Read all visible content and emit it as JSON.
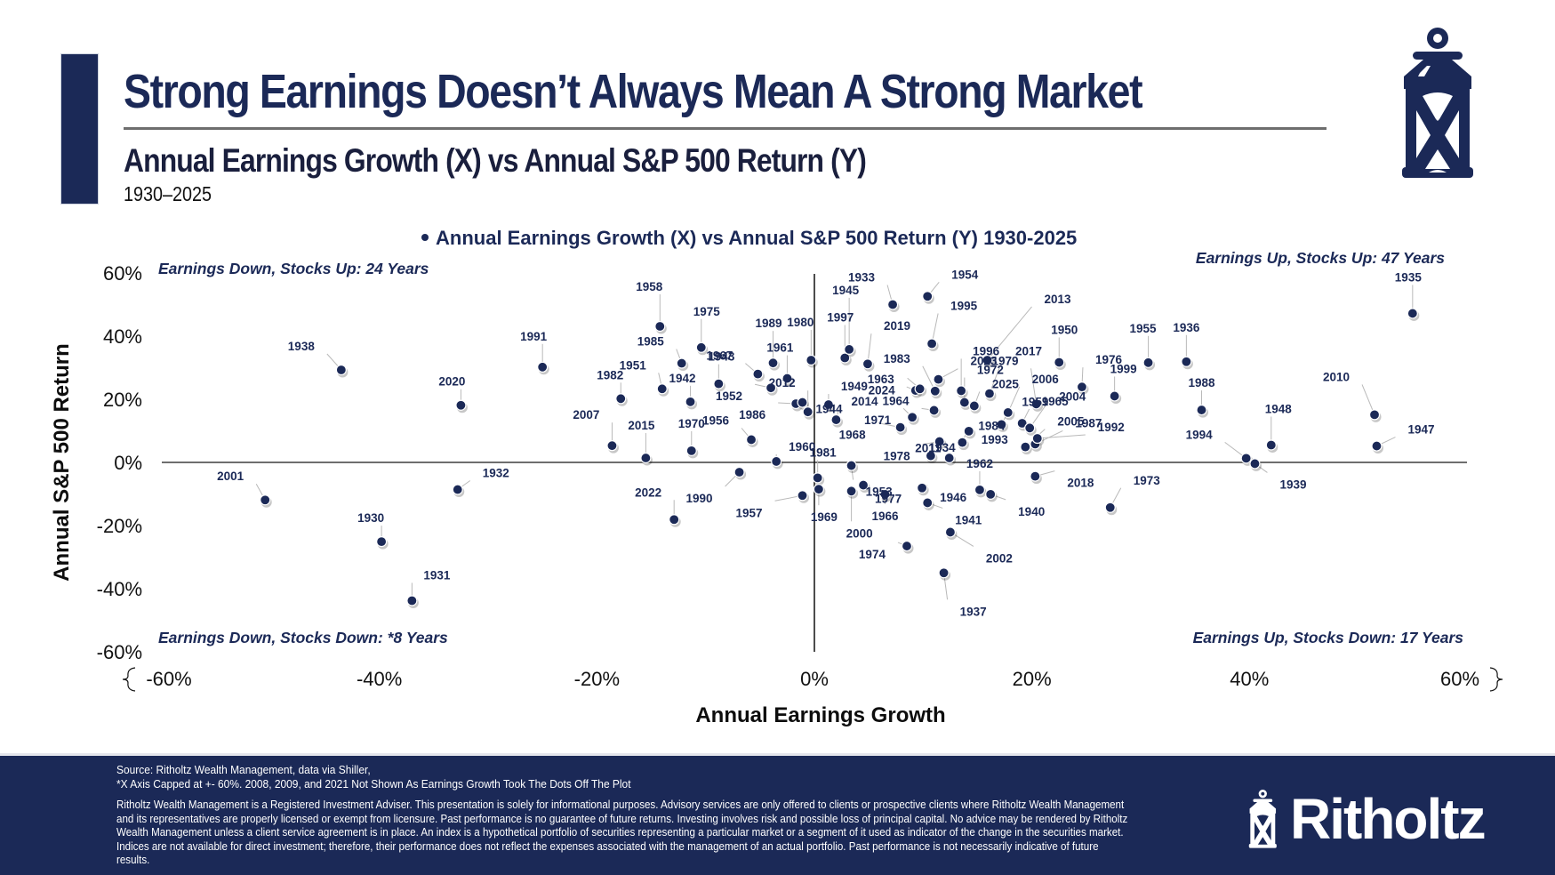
{
  "header": {
    "title": "Strong Earnings Doesn’t Always Mean A Strong Market",
    "subtitle": "Annual Earnings Growth (X) vs Annual S&P 500 Return (Y)",
    "year_range": "1930–2025",
    "logo_icon": "lantern-icon"
  },
  "colors": {
    "navy": "#1b2957",
    "axis": "#6e6e6e",
    "leader": "#b9b9b9"
  },
  "chart_data": {
    "type": "scatter",
    "title": "Annual Earnings Growth (X) vs Annual S&P 500 Return (Y) 1930-2025",
    "legend": "Annual Earnings Growth (X) vs Annual S&P 500 Return (Y) 1930-2025",
    "legend_position": "top-center",
    "xlabel": "Annual Earnings Growth",
    "ylabel": "Annual S&P 500 Return",
    "xlim": [
      -60,
      60
    ],
    "ylim": [
      -60,
      60
    ],
    "x_ticks": [
      "-60%",
      "-40%",
      "-20%",
      "0%",
      "20%",
      "40%",
      "60%"
    ],
    "y_ticks": [
      "60%",
      "40%",
      "20%",
      "0%",
      "-20%",
      "-40%",
      "-60%"
    ],
    "grid": false,
    "quadrant_labels": {
      "top_left": "Earnings Down, Stocks Up: 24 Years",
      "top_right": "Earnings Up, Stocks Up: 47 Years",
      "bottom_left": "Earnings Down, Stocks Down: *8 Years",
      "bottom_right": "Earnings Up, Stocks Down: 17 Years"
    },
    "points": [
      {
        "year": "2001",
        "x": -50.5,
        "y": -11.9
      },
      {
        "year": "1938",
        "x": -43.5,
        "y": 29.3
      },
      {
        "year": "1930",
        "x": -39.8,
        "y": -25.1
      },
      {
        "year": "1931",
        "x": -37.0,
        "y": -43.8
      },
      {
        "year": "2020",
        "x": -32.5,
        "y": 18.1
      },
      {
        "year": "1932",
        "x": -32.8,
        "y": -8.6
      },
      {
        "year": "1991",
        "x": -25.0,
        "y": 30.2
      },
      {
        "year": "1982",
        "x": -17.8,
        "y": 20.2
      },
      {
        "year": "2007",
        "x": -18.6,
        "y": 5.3
      },
      {
        "year": "2015",
        "x": -15.5,
        "y": 1.4
      },
      {
        "year": "1958",
        "x": -14.2,
        "y": 43.1
      },
      {
        "year": "1951",
        "x": -14.0,
        "y": 23.3
      },
      {
        "year": "1985",
        "x": -12.2,
        "y": 31.4
      },
      {
        "year": "2022",
        "x": -12.9,
        "y": -18.1
      },
      {
        "year": "1942",
        "x": -11.4,
        "y": 19.2
      },
      {
        "year": "1970",
        "x": -11.3,
        "y": 3.7
      },
      {
        "year": "1975",
        "x": -10.4,
        "y": 36.4
      },
      {
        "year": "1943",
        "x": -8.8,
        "y": 24.9
      },
      {
        "year": "1990",
        "x": -6.9,
        "y": -3.1
      },
      {
        "year": "1956",
        "x": -5.8,
        "y": 7.2
      },
      {
        "year": "1967",
        "x": -5.2,
        "y": 28.0
      },
      {
        "year": "1952",
        "x": -4.0,
        "y": 23.6
      },
      {
        "year": "1989",
        "x": -3.8,
        "y": 31.5
      },
      {
        "year": "1960",
        "x": -3.5,
        "y": 0.3
      },
      {
        "year": "1957",
        "x": -1.1,
        "y": -10.5
      },
      {
        "year": "1961",
        "x": -2.5,
        "y": 26.6
      },
      {
        "year": "1986",
        "x": -1.7,
        "y": 18.6
      },
      {
        "year": "1944",
        "x": -1.1,
        "y": 19.0
      },
      {
        "year": "2012",
        "x": -0.6,
        "y": 16.0
      },
      {
        "year": "1980",
        "x": -0.3,
        "y": 32.4
      },
      {
        "year": "1981",
        "x": 0.3,
        "y": -4.9
      },
      {
        "year": "1969",
        "x": 0.4,
        "y": -8.5
      },
      {
        "year": "1997",
        "x": 2.8,
        "y": 33.1
      },
      {
        "year": "1945",
        "x": 3.2,
        "y": 35.8
      },
      {
        "year": "1949",
        "x": 1.3,
        "y": 18.3
      },
      {
        "year": "2014",
        "x": 2.0,
        "y": 13.5
      },
      {
        "year": "1953",
        "x": 3.4,
        "y": -1.0
      },
      {
        "year": "2000",
        "x": 3.4,
        "y": -9.1
      },
      {
        "year": "1933",
        "x": 7.2,
        "y": 50.0
      },
      {
        "year": "2019",
        "x": 4.9,
        "y": 31.2
      },
      {
        "year": "1966",
        "x": 6.5,
        "y": -10.1
      },
      {
        "year": "1977",
        "x": 4.5,
        "y": -7.2
      },
      {
        "year": "1968",
        "x": 7.9,
        "y": 11.1
      },
      {
        "year": "1971",
        "x": 9.0,
        "y": 14.3
      },
      {
        "year": "1974",
        "x": 8.5,
        "y": -26.5
      },
      {
        "year": "1954",
        "x": 10.4,
        "y": 52.6
      },
      {
        "year": "1963",
        "x": 9.3,
        "y": 22.8
      },
      {
        "year": "2024",
        "x": 9.7,
        "y": 23.3
      },
      {
        "year": "1995",
        "x": 10.8,
        "y": 37.6
      },
      {
        "year": "1983",
        "x": 11.1,
        "y": 22.6
      },
      {
        "year": "2023",
        "x": 11.4,
        "y": 26.3
      },
      {
        "year": "1964",
        "x": 11.0,
        "y": 16.5
      },
      {
        "year": "1978",
        "x": 11.5,
        "y": 6.6
      },
      {
        "year": "1934",
        "x": 12.4,
        "y": 1.4
      },
      {
        "year": "2011",
        "x": 10.7,
        "y": 2.1
      },
      {
        "year": "1946",
        "x": 9.9,
        "y": -8.1
      },
      {
        "year": "1941",
        "x": 10.4,
        "y": -12.8
      },
      {
        "year": "2002",
        "x": 12.5,
        "y": -22.1
      },
      {
        "year": "1937",
        "x": 11.9,
        "y": -35.0
      },
      {
        "year": "1972",
        "x": 13.8,
        "y": 19.0
      },
      {
        "year": "1996",
        "x": 13.5,
        "y": 22.7
      },
      {
        "year": "1984",
        "x": 13.6,
        "y": 6.3
      },
      {
        "year": "1993",
        "x": 14.2,
        "y": 9.9
      },
      {
        "year": "2025",
        "x": 14.7,
        "y": 17.9
      },
      {
        "year": "1962",
        "x": 15.2,
        "y": -8.7
      },
      {
        "year": "2013",
        "x": 15.9,
        "y": 32.4
      },
      {
        "year": "1959",
        "x": 17.2,
        "y": 12.0
      },
      {
        "year": "2017",
        "x": 16.1,
        "y": 21.8
      },
      {
        "year": "2006",
        "x": 17.8,
        "y": 15.8
      },
      {
        "year": "1965",
        "x": 19.1,
        "y": 12.4
      },
      {
        "year": "1940",
        "x": 16.2,
        "y": -10.1
      },
      {
        "year": "1979",
        "x": 20.4,
        "y": 18.5
      },
      {
        "year": "2018",
        "x": 20.3,
        "y": -4.4
      },
      {
        "year": "2004",
        "x": 19.8,
        "y": 10.9
      },
      {
        "year": "2005",
        "x": 19.4,
        "y": 4.9
      },
      {
        "year": "1987",
        "x": 20.3,
        "y": 5.8
      },
      {
        "year": "1992",
        "x": 20.5,
        "y": 7.6
      },
      {
        "year": "1950",
        "x": 22.5,
        "y": 31.7
      },
      {
        "year": "1976",
        "x": 24.6,
        "y": 23.9
      },
      {
        "year": "1999",
        "x": 27.6,
        "y": 21.0
      },
      {
        "year": "1973",
        "x": 27.2,
        "y": -14.3
      },
      {
        "year": "1955",
        "x": 30.7,
        "y": 31.6
      },
      {
        "year": "1936",
        "x": 34.2,
        "y": 31.9
      },
      {
        "year": "1988",
        "x": 35.6,
        "y": 16.6
      },
      {
        "year": "1994",
        "x": 39.7,
        "y": 1.3
      },
      {
        "year": "1939",
        "x": 40.5,
        "y": -0.4
      },
      {
        "year": "1948",
        "x": 42.0,
        "y": 5.5
      },
      {
        "year": "2010",
        "x": 51.5,
        "y": 15.1
      },
      {
        "year": "1947",
        "x": 51.7,
        "y": 5.2
      },
      {
        "year": "1935",
        "x": 55.0,
        "y": 47.2
      }
    ]
  },
  "footer": {
    "source_line1": "Source: Ritholtz Wealth Management, data via Shiller,",
    "source_line2": "*X Axis Capped at +- 60%. 2008, 2009, and 2021 Not Shown As Earnings Growth Took The Dots Off The Plot",
    "disclaimer": "Ritholtz Wealth Management is a Registered Investment Adviser. This presentation is solely for informational purposes. Advisory services are only offered to clients or prospective clients where Ritholtz Wealth Management and its representatives are properly licensed or exempt from licensure. Past performance is no guarantee of future returns. Investing involves risk and possible loss of principal capital. No advice may be rendered by Ritholtz Wealth Management unless a client service agreement is in place. An index is a hypothetical portfolio of securities representing a particular market or a segment of it used as indicator of the change in the securities market. Indices are not available for direct investment; therefore, their performance does not reflect the expenses associated with the management of an actual portfolio. Past performance is not necessarily indicative of future results.",
    "brand_name": "Ritholtz",
    "brand_icon": "lantern-icon"
  }
}
